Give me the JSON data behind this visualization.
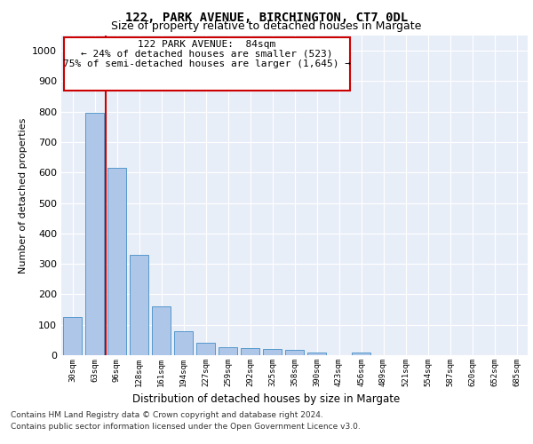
{
  "title": "122, PARK AVENUE, BIRCHINGTON, CT7 0DL",
  "subtitle": "Size of property relative to detached houses in Margate",
  "xlabel": "Distribution of detached houses by size in Margate",
  "ylabel": "Number of detached properties",
  "categories": [
    "30sqm",
    "63sqm",
    "96sqm",
    "128sqm",
    "161sqm",
    "194sqm",
    "227sqm",
    "259sqm",
    "292sqm",
    "325sqm",
    "358sqm",
    "390sqm",
    "423sqm",
    "456sqm",
    "489sqm",
    "521sqm",
    "554sqm",
    "587sqm",
    "620sqm",
    "652sqm",
    "685sqm"
  ],
  "values": [
    125,
    795,
    615,
    330,
    160,
    78,
    40,
    27,
    24,
    20,
    17,
    8,
    0,
    10,
    0,
    0,
    0,
    0,
    0,
    0,
    0
  ],
  "bar_color": "#aec6e8",
  "bar_edge_color": "#5599cc",
  "vline_color": "#cc0000",
  "annotation_line1": "122 PARK AVENUE:  84sqm",
  "annotation_line2": "← 24% of detached houses are smaller (523)",
  "annotation_line3": "75% of semi-detached houses are larger (1,645) →",
  "annotation_box_color": "#cc0000",
  "ylim": [
    0,
    1050
  ],
  "yticks": [
    0,
    100,
    200,
    300,
    400,
    500,
    600,
    700,
    800,
    900,
    1000
  ],
  "footer_line1": "Contains HM Land Registry data © Crown copyright and database right 2024.",
  "footer_line2": "Contains public sector information licensed under the Open Government Licence v3.0.",
  "bg_color": "#e8eef8",
  "fig_bg_color": "#ffffff",
  "grid_color": "#ffffff"
}
